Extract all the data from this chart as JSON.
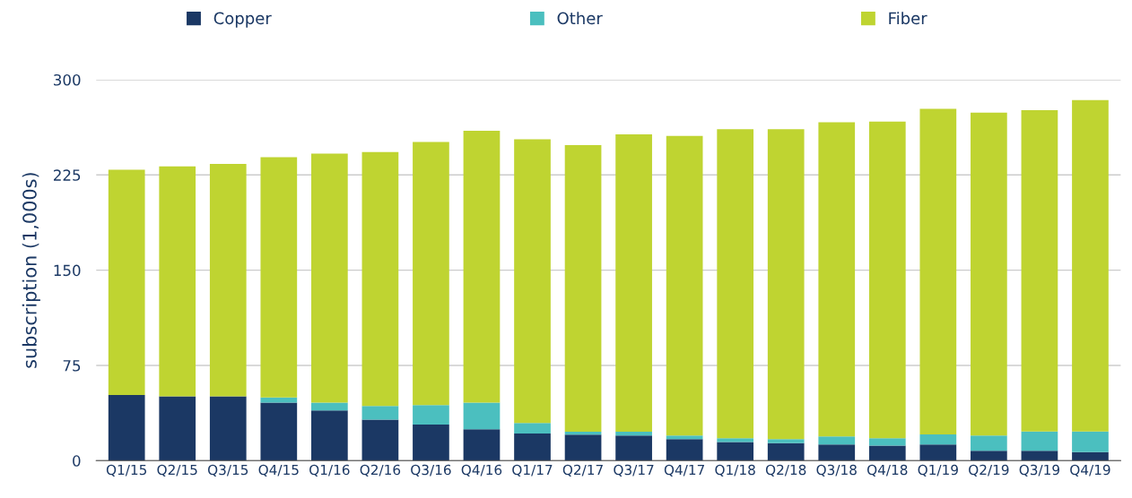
{
  "chart_data": {
    "type": "bar",
    "stacked": true,
    "ylabel": "subscription (1,000s)",
    "categories": [
      "Q1/15",
      "Q2/15",
      "Q3/15",
      "Q4/15",
      "Q1/16",
      "Q2/16",
      "Q3/16",
      "Q4/16",
      "Q1/17",
      "Q2/17",
      "Q3/17",
      "Q4/17",
      "Q1/18",
      "Q2/18",
      "Q3/18",
      "Q4/18",
      "Q1/19",
      "Q2/19",
      "Q3/19",
      "Q4/19"
    ],
    "series": [
      {
        "name": "Copper",
        "color": "#1b3864",
        "values": [
          51.7,
          50.7,
          50.7,
          45.7,
          39.6,
          32.3,
          28.4,
          24.7,
          21.4,
          20.5,
          19.7,
          17.0,
          14.7,
          13.8,
          12.8,
          11.8,
          12.8,
          7.8,
          7.8,
          6.8
        ]
      },
      {
        "name": "Other",
        "color": "#4bbfbf",
        "values": [
          0,
          0,
          0,
          4.1,
          6.1,
          10.7,
          15.4,
          21.0,
          8.3,
          2.2,
          3.0,
          2.7,
          3.0,
          3.2,
          6.2,
          5.9,
          7.9,
          11.9,
          15.2,
          16.2
        ]
      },
      {
        "name": "Fiber",
        "color": "#bfd431",
        "values": [
          177.3,
          181.0,
          183.0,
          189.2,
          196.0,
          200.0,
          207.2,
          214.1,
          223.3,
          225.7,
          234.3,
          236.1,
          243.3,
          244.0,
          247.5,
          249.3,
          256.3,
          254.3,
          253.0,
          261.0
        ]
      }
    ],
    "ylim": [
      0,
      300
    ],
    "yticks": [
      0,
      75,
      150,
      225,
      300
    ],
    "grid": "y",
    "legend": "top"
  }
}
